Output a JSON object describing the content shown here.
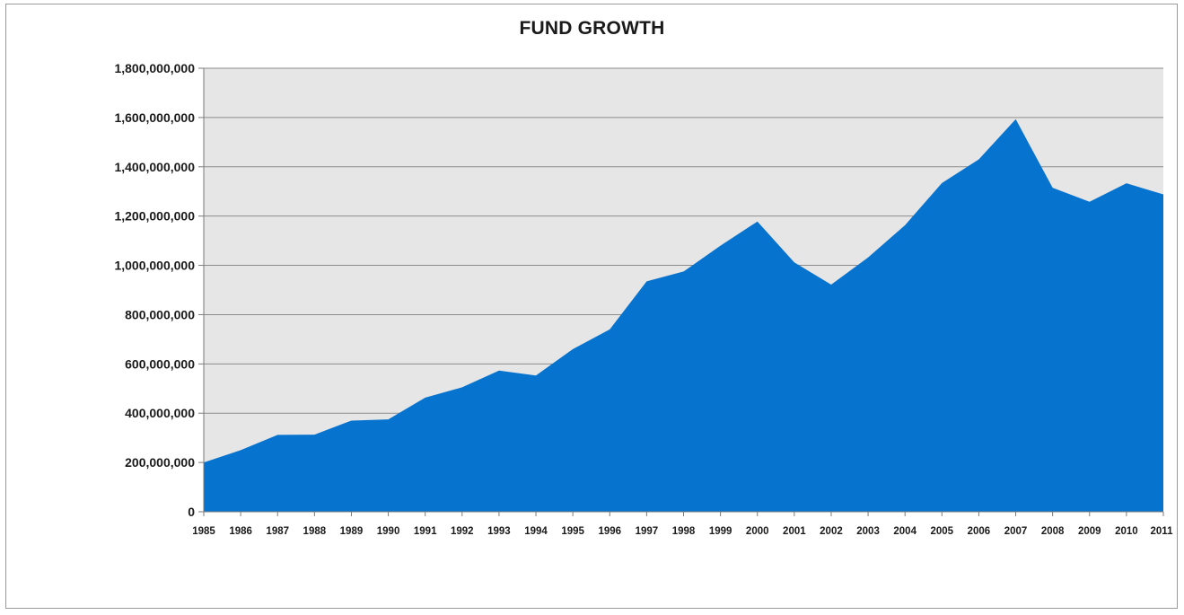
{
  "chart_data": {
    "type": "area",
    "title": "FUND GROWTH",
    "xlabel": "",
    "ylabel": "",
    "x": [
      "1985",
      "1986",
      "1987",
      "1988",
      "1989",
      "1990",
      "1991",
      "1992",
      "1993",
      "1994",
      "1995",
      "1996",
      "1997",
      "1998",
      "1999",
      "2000",
      "2001",
      "2002",
      "2003",
      "2004",
      "2005",
      "2006",
      "2007",
      "2008",
      "2009",
      "2010",
      "2011"
    ],
    "series": [
      {
        "values": [
          200000000,
          250000000,
          312000000,
          313000000,
          370000000,
          375000000,
          463000000,
          505000000,
          573000000,
          553000000,
          660000000,
          740000000,
          935000000,
          975000000,
          1080000000,
          1178000000,
          1012000000,
          922000000,
          1032000000,
          1163000000,
          1334000000,
          1430000000,
          1593000000,
          1315000000,
          1258000000,
          1333000000,
          1288000000
        ],
        "color": "#0673cf"
      }
    ],
    "ylim": [
      0,
      1800000000
    ],
    "y_ticks": [
      0,
      200000000,
      400000000,
      600000000,
      800000000,
      1000000000,
      1200000000,
      1400000000,
      1600000000,
      1800000000
    ],
    "y_tick_labels": [
      "0",
      "200,000,000",
      "400,000,000",
      "600,000,000",
      "800,000,000",
      "1,000,000,000",
      "1,200,000,000",
      "1,400,000,000",
      "1,600,000,000",
      "1,800,000,000"
    ],
    "grid": true,
    "legend": "none",
    "plot_background": "#e6e6e6",
    "gridline_color": "#8c8c8c"
  }
}
